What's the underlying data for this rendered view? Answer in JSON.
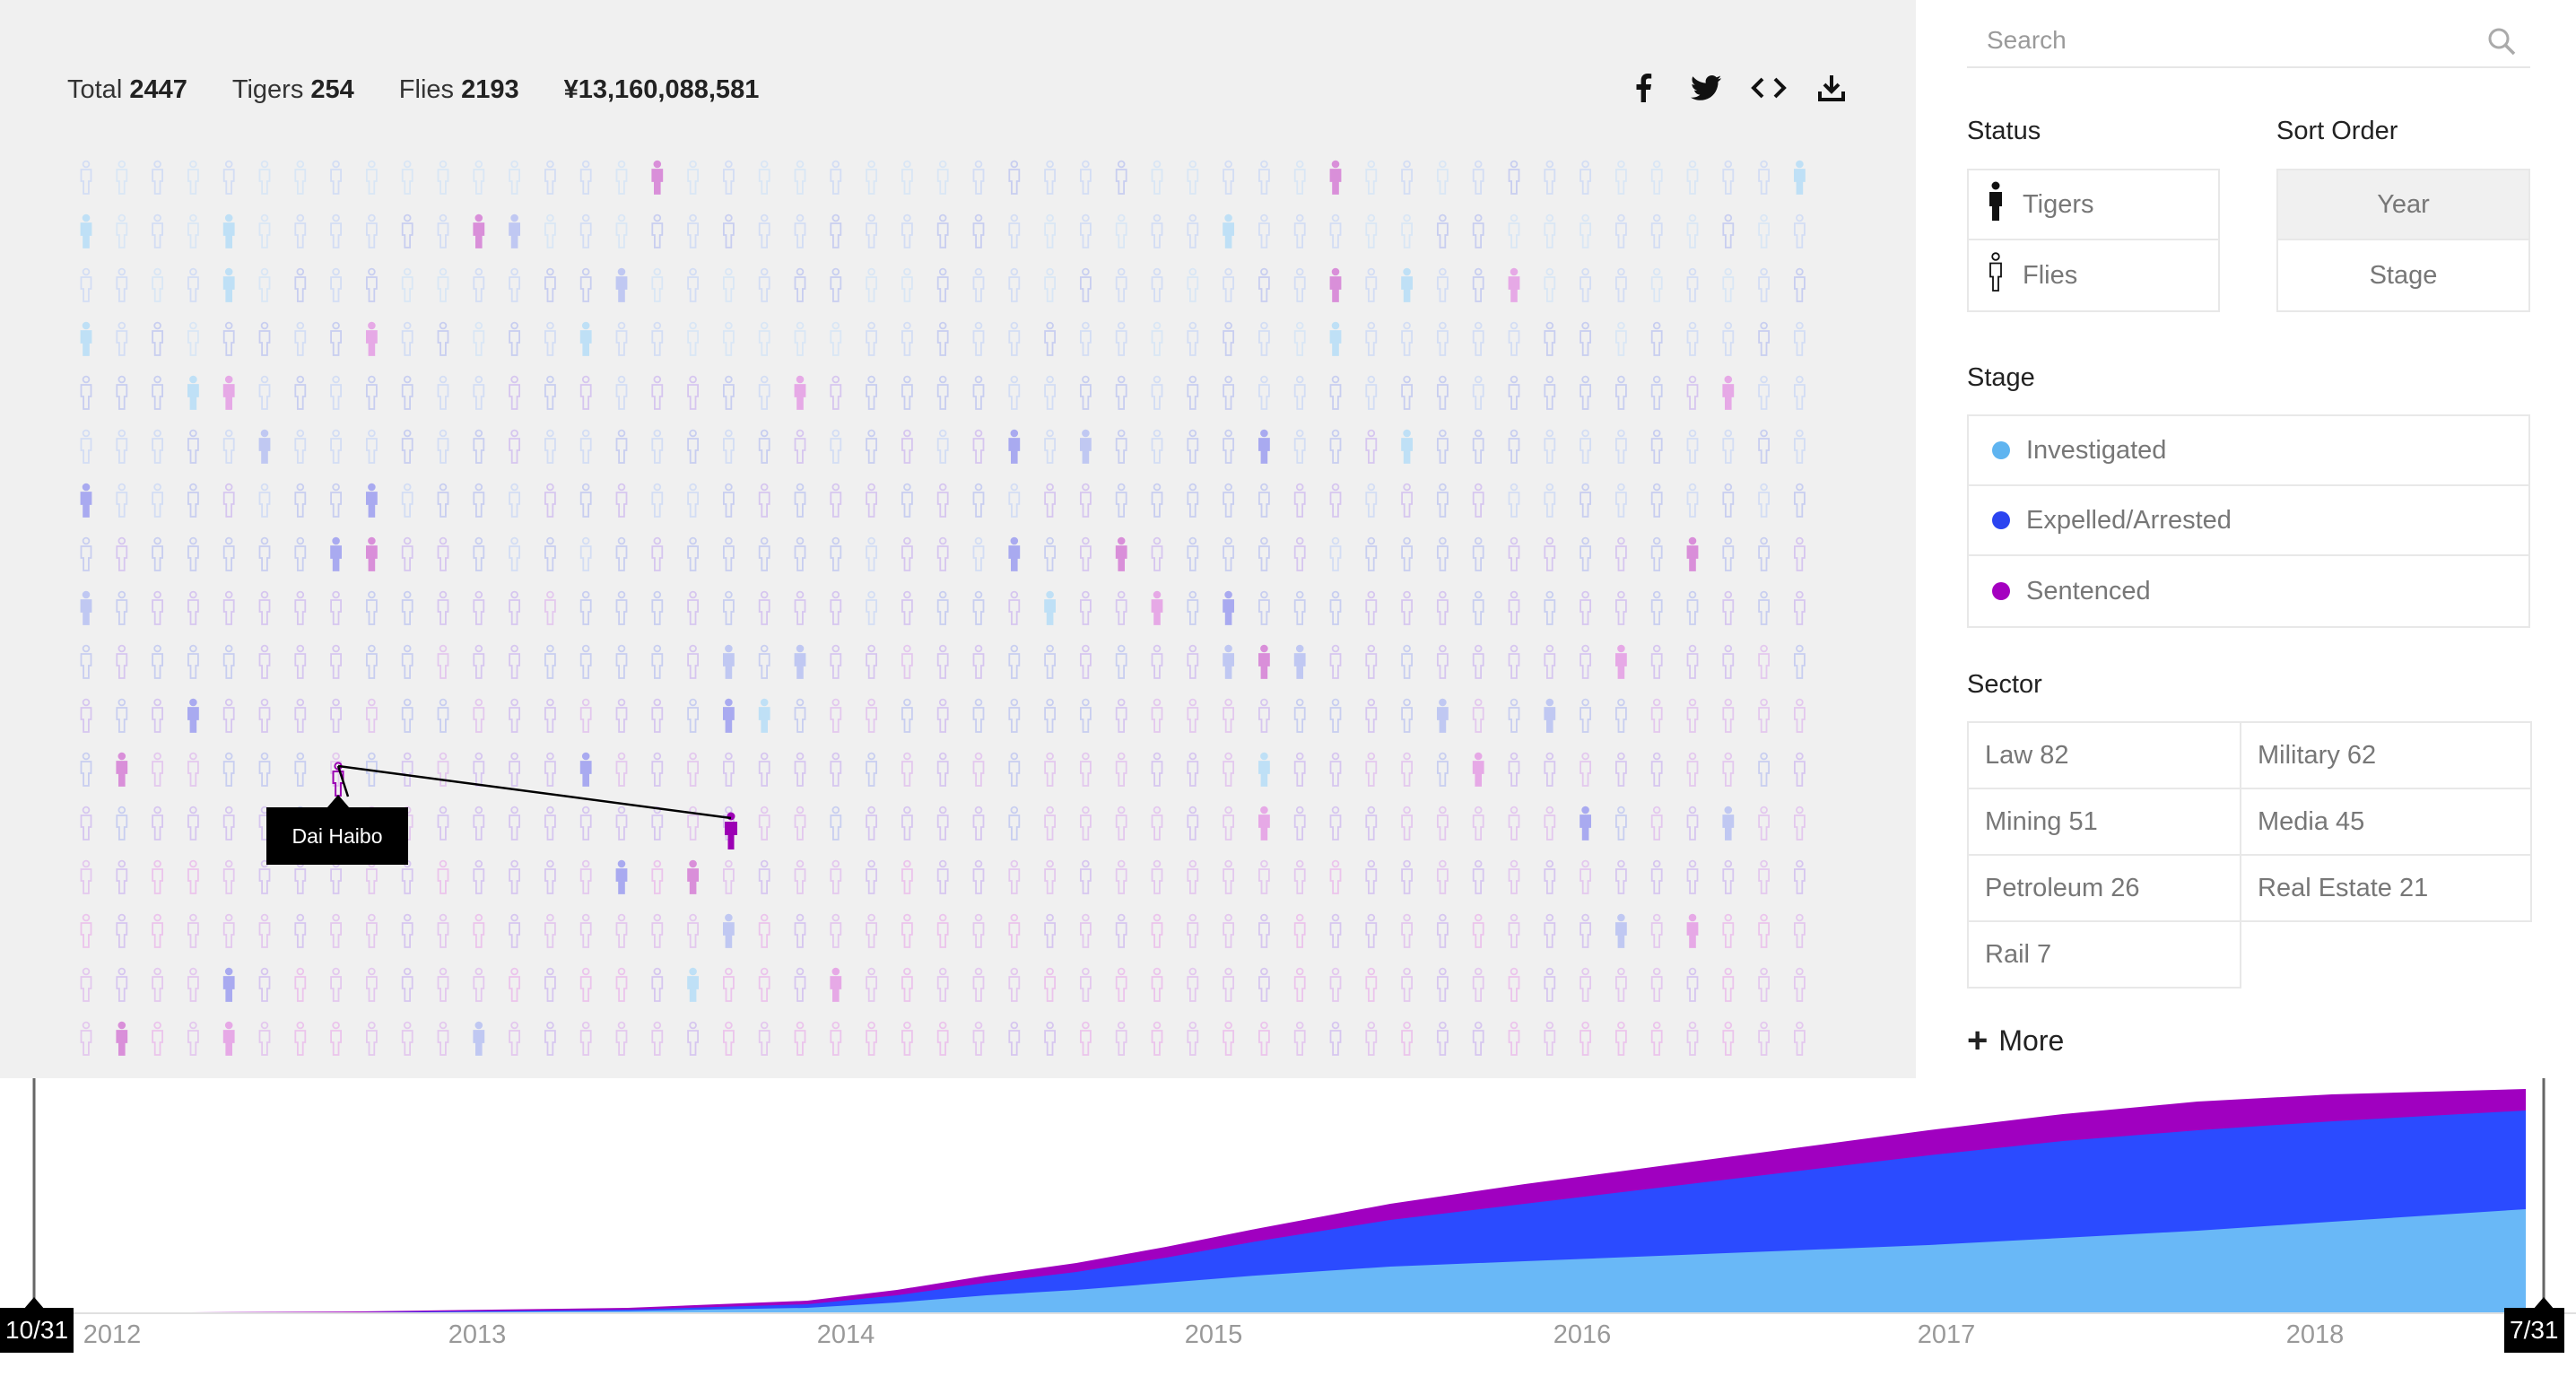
{
  "stats": [
    {
      "label": "Total",
      "value": "2447"
    },
    {
      "label": "Tigers",
      "value": "254"
    },
    {
      "label": "Flies",
      "value": "2193"
    }
  ],
  "amount": "¥13,160,088,581",
  "share_icons": [
    "facebook-icon",
    "twitter-icon",
    "embed-icon",
    "download-icon"
  ],
  "tooltip": {
    "name": "Dai Haibo"
  },
  "search": {
    "placeholder": "Search"
  },
  "status": {
    "title": "Status",
    "items": [
      {
        "label": "Tigers",
        "icon": "tiger-figure-icon"
      },
      {
        "label": "Flies",
        "icon": "fly-figure-icon"
      }
    ]
  },
  "sort_order": {
    "title": "Sort Order",
    "items": [
      {
        "label": "Year",
        "active": true
      },
      {
        "label": "Stage",
        "active": false
      }
    ]
  },
  "stage": {
    "title": "Stage",
    "items": [
      {
        "label": "Investigated",
        "color": "#5fb4f0"
      },
      {
        "label": "Expelled/Arrested",
        "color": "#2b44f0"
      },
      {
        "label": "Sentenced",
        "color": "#a400c0"
      }
    ]
  },
  "sector": {
    "title": "Sector",
    "items": [
      "Law 82",
      "Military 62",
      "Mining 51",
      "Media 45",
      "Petroleum 26",
      "Real Estate 21",
      "Rail 7"
    ]
  },
  "more_label": "More",
  "colors": {
    "investigated": "#69b8f7",
    "expelled": "#2b4bff",
    "sentenced": "#a000c0",
    "highlight": "#9c00b4"
  },
  "timeline": {
    "years": [
      "2012",
      "2013",
      "2014",
      "2015",
      "2016",
      "2017",
      "2018"
    ],
    "start_label": "10/31",
    "end_label": "7/31"
  }
}
